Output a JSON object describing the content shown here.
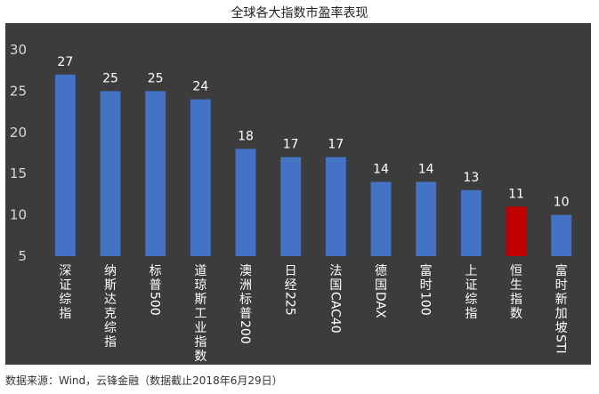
{
  "title": "全球各大指数市盈率表现",
  "source": "数据来源：Wind，云锋金融（数据截止2018年6月29日）",
  "colors": {
    "background": "#3c3c3c",
    "bar": "#4472c4",
    "highlight": "#c00000",
    "text": "#ffffff",
    "axis_text": "#d9d9d9"
  },
  "chart_data": {
    "type": "bar",
    "title": "全球各大指数市盈率表现",
    "categories": [
      "深证综指",
      "纳斯达克综指",
      "标普500",
      "道琼斯工业指数",
      "澳洲标普200",
      "日经225",
      "法国CAC40",
      "德国DAX",
      "富时100",
      "上证综指",
      "恒生指数",
      "富时新加坡STI"
    ],
    "values": [
      27,
      25,
      25,
      24,
      18,
      17,
      17,
      14,
      14,
      13,
      11,
      10
    ],
    "highlight_index": 10,
    "ylim": [
      5,
      30
    ],
    "yticks": [
      5,
      10,
      15,
      20,
      25,
      30
    ],
    "grid": false,
    "legend": "none",
    "xlabel": "",
    "ylabel": ""
  }
}
